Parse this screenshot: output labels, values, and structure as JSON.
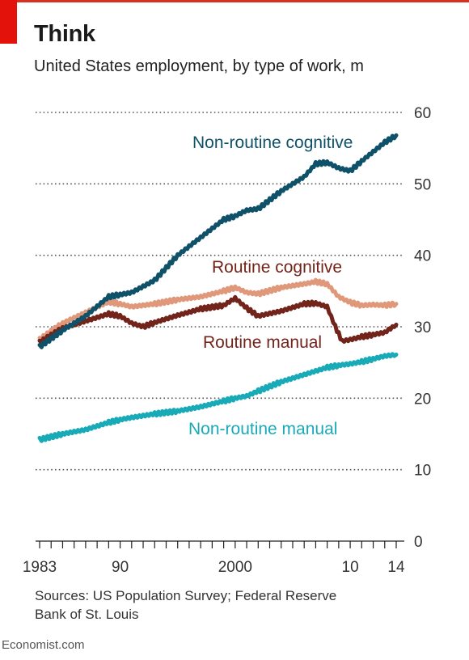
{
  "header": {
    "title": "Think",
    "subtitle": "United States employment, by type of work, m"
  },
  "source": {
    "line1": "Sources: US Population Survey; Federal Reserve",
    "line2": "Bank of St. Louis"
  },
  "footer": {
    "brand": "Economist.com"
  },
  "colors": {
    "accent_red": "#e3120b",
    "non_routine_cognitive": "#0f5168",
    "routine_cognitive": "#e0987a",
    "routine_manual": "#73241a",
    "non_routine_manual": "#19aab8",
    "gridline": "#555555"
  },
  "chart_data": {
    "type": "line",
    "x_ticks": [
      "1983",
      "90",
      "2000",
      "10",
      "14"
    ],
    "x_tick_years": [
      1983,
      1990,
      2000,
      2010,
      2014
    ],
    "xlim": [
      1983,
      2014
    ],
    "y_ticks": [
      "0",
      "10",
      "20",
      "30",
      "40",
      "50",
      "60"
    ],
    "ylim": [
      0,
      60
    ],
    "grid": "dotted horizontal",
    "y_axis_side": "right",
    "series": [
      {
        "name": "Non-routine cognitive",
        "color": "#0f5168",
        "x": [
          1983,
          1985,
          1987,
          1989,
          1990,
          1991,
          1993,
          1995,
          1997,
          1999,
          2000,
          2001,
          2002,
          2004,
          2006,
          2007,
          2008,
          2009,
          2010,
          2011,
          2012,
          2013,
          2014
        ],
        "values": [
          27.2,
          29.5,
          31.5,
          34.2,
          34.5,
          34.8,
          36.5,
          40.0,
          42.5,
          45.0,
          45.5,
          46.3,
          46.5,
          49.0,
          51.0,
          52.8,
          53.0,
          52.2,
          51.8,
          53.2,
          54.5,
          55.8,
          56.8
        ]
      },
      {
        "name": "Routine cognitive",
        "color": "#e0987a",
        "x": [
          1983,
          1985,
          1987,
          1989,
          1990,
          1991,
          1993,
          1995,
          1997,
          1999,
          2000,
          2001,
          2002,
          2004,
          2006,
          2007,
          2008,
          2009,
          2010,
          2011,
          2012,
          2013,
          2014
        ],
        "values": [
          28.2,
          30.5,
          32.0,
          33.5,
          33.2,
          32.8,
          33.2,
          33.8,
          34.2,
          35.0,
          35.5,
          34.8,
          34.6,
          35.5,
          36.0,
          36.3,
          36.0,
          34.2,
          33.4,
          33.0,
          33.1,
          33.0,
          33.2
        ]
      },
      {
        "name": "Routine manual",
        "color": "#73241a",
        "x": [
          1983,
          1985,
          1987,
          1989,
          1990,
          1991,
          1992,
          1993,
          1995,
          1997,
          1999,
          2000,
          2001,
          2002,
          2004,
          2006,
          2007,
          2008,
          2008.7,
          2009.3,
          2010,
          2011,
          2012,
          2013,
          2014
        ],
        "values": [
          27.8,
          29.8,
          30.8,
          31.8,
          31.5,
          30.5,
          30.0,
          30.6,
          31.6,
          32.5,
          33.0,
          34.0,
          32.6,
          31.5,
          32.2,
          33.2,
          33.3,
          32.8,
          30.0,
          28.0,
          28.2,
          28.6,
          28.9,
          29.2,
          30.3
        ]
      },
      {
        "name": "Non-routine manual",
        "color": "#19aab8",
        "x": [
          1983,
          1985,
          1987,
          1989,
          1990,
          1991,
          1993,
          1995,
          1997,
          1999,
          2000,
          2001,
          2002,
          2004,
          2006,
          2008,
          2009,
          2010,
          2011,
          2012,
          2013,
          2014
        ],
        "values": [
          14.2,
          15.0,
          15.6,
          16.6,
          17.0,
          17.3,
          17.8,
          18.2,
          18.8,
          19.6,
          20.0,
          20.3,
          21.0,
          22.3,
          23.3,
          24.3,
          24.6,
          24.8,
          25.1,
          25.5,
          25.9,
          26.1
        ]
      }
    ],
    "annotations": [
      {
        "text": "Non-routine cognitive",
        "color": "#0f5168",
        "series": 0
      },
      {
        "text": "Routine cognitive",
        "color": "#73241a",
        "series": 1
      },
      {
        "text": "Routine manual",
        "color": "#73241a",
        "series": 2
      },
      {
        "text": "Non-routine manual",
        "color": "#19aab8",
        "series": 3
      }
    ]
  }
}
